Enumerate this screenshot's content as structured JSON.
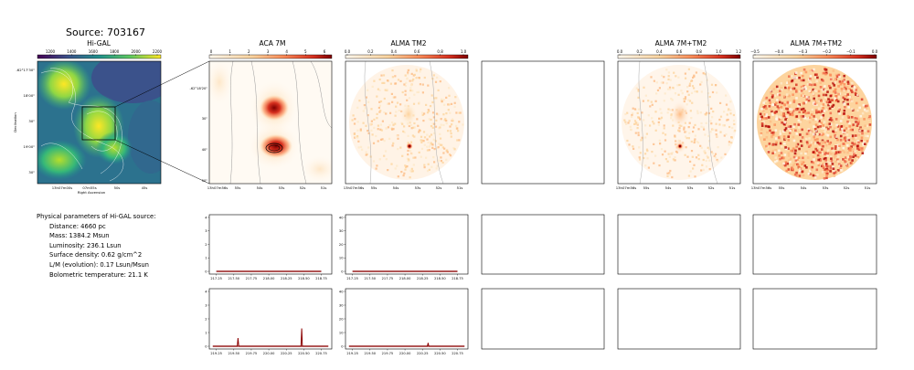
{
  "source_title": "Source: 703167",
  "panels": {
    "higal": {
      "title": "Hi-GAL",
      "colorbar_ticks": [
        "1200",
        "1400",
        "1600",
        "1800",
        "2000",
        "2200"
      ],
      "yticks": [
        "-62°17'30\"",
        "18'00\"",
        "30\"",
        "19'00\"",
        "30\""
      ],
      "xticks": [
        "13h07m00s",
        "07m55s",
        "50s",
        "45s"
      ],
      "xlabel": "Right Ascension",
      "ylabel": "Declination"
    },
    "aca7m": {
      "title": "ACA 7M",
      "colorbar_ticks": [
        "0",
        "1",
        "2",
        "3",
        "4",
        "5",
        "6"
      ],
      "yticks": [
        "-62°18'20\"",
        "30\"",
        "40\"",
        "50\""
      ],
      "xticks": [
        "13h07m56s",
        "55s",
        "54s",
        "53s",
        "52s",
        "51s"
      ]
    },
    "alma_tm2": {
      "title": "ALMA TM2",
      "colorbar_ticks": [
        "0.0",
        "0.2",
        "0.4",
        "0.6",
        "0.8",
        "1.0"
      ],
      "xticks": [
        "13h07m56s",
        "55s",
        "54s",
        "53s",
        "52s",
        "51s"
      ]
    },
    "alma_7m_tm2_a": {
      "title": "ALMA 7M+TM2",
      "colorbar_ticks": [
        "0.0",
        "0.2",
        "0.4",
        "0.6",
        "0.8",
        "1.0",
        "1.2"
      ],
      "xticks": [
        "13h07m56s",
        "55s",
        "54s",
        "53s",
        "52s",
        "51s"
      ]
    },
    "alma_7m_tm2_b": {
      "title": "ALMA 7M+TM2",
      "colorbar_ticks": [
        "−0.5",
        "−0.4",
        "−0.3",
        "−0.2",
        "−0.1",
        "0.0"
      ],
      "xticks": [
        "13h07m56s",
        "55s",
        "54s",
        "53s",
        "52s",
        "51s"
      ]
    }
  },
  "params": {
    "heading": "Physical parameters of Hi-GAL source:",
    "lines": [
      "Distance: 4660 pc",
      "Mass: 1384.2 Msun",
      "Luminosity: 236.1 Lsun",
      "Surface density: 0.62 g/cm^2",
      "L/M (evolution): 0.17 Lsun/Msun",
      "Bolometric temperature: 21.1 K"
    ]
  },
  "chart_data": [
    {
      "type": "line",
      "panel": "spectrum-aca-spw1",
      "x": [
        217.25,
        218.75
      ],
      "y": [
        0,
        0
      ],
      "xticks": [
        "217.25",
        "217.50",
        "217.75",
        "218.00",
        "218.25",
        "218.50",
        "218.75"
      ],
      "yticks": [
        "0",
        "1",
        "2",
        "3",
        "4"
      ],
      "xlim": [
        217.15,
        218.9
      ],
      "ylim": [
        -0.2,
        4.2
      ],
      "color": "#8b0000"
    },
    {
      "type": "line",
      "panel": "spectrum-tm2-spw1",
      "x": [
        217.25,
        218.75
      ],
      "y": [
        0,
        0
      ],
      "xticks": [
        "217.25",
        "217.50",
        "217.75",
        "218.00",
        "218.25",
        "218.50",
        "218.75"
      ],
      "yticks": [
        "0",
        "10",
        "20",
        "30",
        "40"
      ],
      "xlim": [
        217.15,
        218.9
      ],
      "ylim": [
        -2,
        42
      ],
      "color": "#8b0000"
    },
    {
      "type": "line",
      "panel": "spectrum-aca-spw2",
      "x": [
        219.2,
        219.55,
        219.56,
        219.57,
        220.46,
        220.47,
        220.48,
        220.85
      ],
      "y": [
        0,
        0,
        0.6,
        0,
        0,
        1.3,
        0,
        0
      ],
      "xticks": [
        "219.25",
        "219.50",
        "219.75",
        "220.00",
        "220.25",
        "220.50",
        "220.75"
      ],
      "yticks": [
        "0",
        "1",
        "2",
        "3",
        "4"
      ],
      "xlim": [
        219.15,
        220.9
      ],
      "ylim": [
        -0.2,
        4.2
      ],
      "color": "#8b0000"
    },
    {
      "type": "line",
      "panel": "spectrum-tm2-spw2",
      "x": [
        219.2,
        220.32,
        220.33,
        220.34,
        220.85
      ],
      "y": [
        0,
        0,
        2.5,
        0,
        0
      ],
      "xticks": [
        "219.25",
        "219.50",
        "219.75",
        "220.00",
        "220.25",
        "220.50",
        "220.75"
      ],
      "yticks": [
        "0",
        "10",
        "20",
        "30",
        "40"
      ],
      "xlim": [
        219.15,
        220.9
      ],
      "ylim": [
        -2,
        42
      ],
      "color": "#8b0000"
    }
  ]
}
